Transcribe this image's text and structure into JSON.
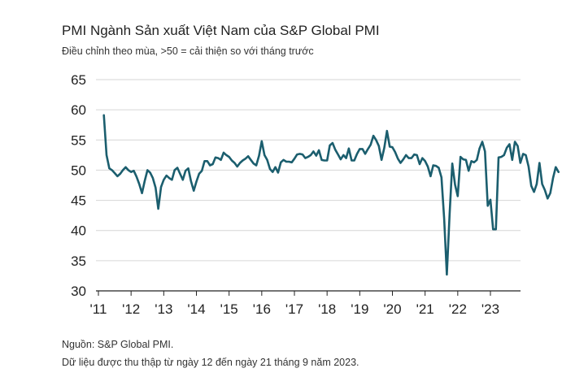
{
  "chart_data": {
    "type": "line",
    "title": "PMI Ngành Sản xuất Việt Nam của S&P Global PMI",
    "subtitle": "Điều chỉnh theo mùa, >50 = cải thiện so với tháng trước",
    "xlabel": "",
    "ylabel": "",
    "ylim": [
      30,
      65
    ],
    "yticks": [
      30,
      35,
      40,
      45,
      50,
      55,
      60,
      65
    ],
    "xticks": [
      "'11",
      "'12",
      "'13",
      "'14",
      "'15",
      "'16",
      "'17",
      "'18",
      "'19",
      "'20",
      "'21",
      "'22",
      "'23"
    ],
    "grid": true,
    "line_color": "#1b5e6e",
    "x_start": "2011-03",
    "values": [
      59.1,
      52.5,
      50.3,
      50.0,
      49.5,
      49.0,
      49.4,
      50.0,
      50.5,
      50.0,
      49.7,
      49.9,
      48.9,
      47.7,
      46.2,
      48.2,
      50.0,
      49.6,
      48.7,
      47.1,
      43.6,
      47.2,
      48.4,
      49.1,
      48.7,
      48.4,
      50.0,
      50.4,
      49.4,
      48.4,
      49.9,
      50.3,
      48.2,
      46.6,
      48.1,
      49.4,
      49.9,
      51.5,
      51.5,
      50.8,
      51.0,
      52.1,
      52.0,
      51.7,
      52.9,
      52.5,
      52.2,
      51.6,
      51.2,
      50.6,
      51.2,
      51.6,
      51.9,
      52.3,
      51.7,
      51.1,
      50.8,
      52.4,
      54.8,
      52.5,
      51.7,
      50.2,
      49.7,
      50.5,
      49.6,
      51.3,
      51.7,
      51.4,
      51.4,
      51.3,
      51.9,
      52.6,
      52.7,
      52.6,
      52.0,
      52.2,
      52.5,
      53.1,
      52.4,
      53.3,
      51.7,
      51.6,
      51.6,
      54.1,
      54.5,
      53.4,
      52.6,
      51.8,
      52.5,
      52.0,
      53.6,
      51.6,
      51.6,
      52.7,
      53.5,
      53.5,
      52.7,
      53.5,
      54.2,
      55.7,
      55.0,
      54.0,
      51.7,
      53.7,
      56.5,
      53.9,
      53.8,
      53.0,
      51.9,
      51.2,
      51.8,
      52.5,
      52.0,
      52.0,
      52.6,
      52.5,
      51.0,
      52.0,
      51.5,
      50.6,
      49.0,
      50.8,
      50.7,
      50.4,
      48.8,
      42.0,
      32.7,
      42.7,
      51.1,
      47.6,
      45.7,
      52.2,
      51.8,
      51.7,
      49.9,
      51.5,
      51.3,
      51.7,
      53.6,
      54.7,
      53.1,
      44.1,
      45.1,
      40.2,
      40.2,
      52.1,
      52.2,
      52.5,
      53.7,
      54.3,
      51.7,
      54.7,
      54.0,
      51.2,
      52.7,
      52.5,
      50.6,
      47.4,
      46.4,
      47.7,
      51.2,
      47.7,
      46.7,
      45.3,
      46.2,
      48.7,
      50.5,
      49.7
    ]
  },
  "footer": {
    "source": "Nguồn: S&P Global PMI.",
    "note": "Dữ liệu được thu thập từ ngày 12 đến ngày 21 tháng 9 năm 2023."
  }
}
